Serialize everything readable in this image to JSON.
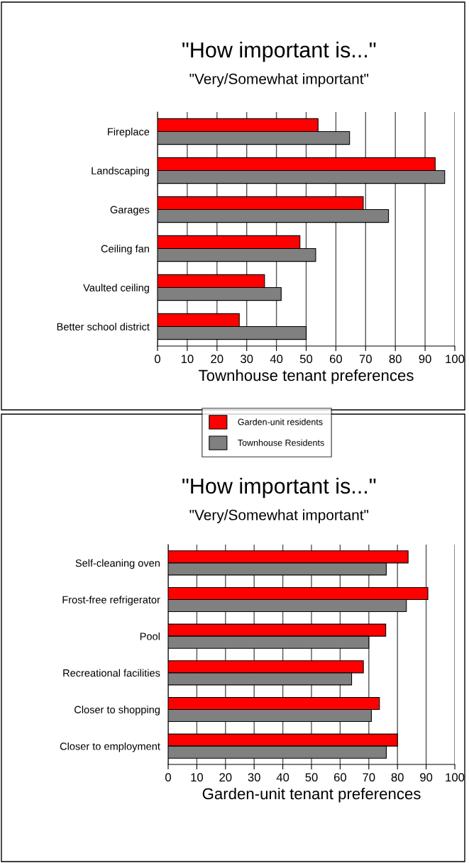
{
  "chart_data": [
    {
      "type": "bar",
      "orientation": "horizontal",
      "title": "\"How important is...\"",
      "subtitle": "\"Very/Somewhat important\"",
      "xlabel": "Townhouse tenant preferences",
      "categories": [
        "Fireplace",
        "Landscaping",
        "Garages",
        "Ceiling fan",
        "Vaulted ceiling",
        "Better school district"
      ],
      "series": [
        {
          "name": "Garden-unit residents",
          "color": "#ff0000",
          "values": [
            54.0,
            93.4,
            69.2,
            47.9,
            36.0,
            27.5
          ]
        },
        {
          "name": "Townhouse Residents",
          "color": "#808080",
          "values": [
            64.6,
            96.6,
            77.7,
            53.2,
            41.6,
            50.0
          ]
        }
      ],
      "xlim": [
        0,
        100
      ],
      "xticks": [
        0,
        10,
        20,
        30,
        40,
        50,
        60,
        70,
        80,
        90,
        100
      ],
      "grid": "x",
      "legend": "bottom"
    },
    {
      "type": "bar",
      "orientation": "horizontal",
      "title": "\"How important is...\"",
      "subtitle": "\"Very/Somewhat important\"",
      "xlabel": "Garden-unit tenant preferences",
      "categories": [
        "Self-cleaning oven",
        "Frost-free refrigerator",
        "Pool",
        "Recreational facilities",
        "Closer to shopping",
        "Closer to employment"
      ],
      "series": [
        {
          "color": "#ff0000",
          "values": [
            83.7,
            90.6,
            75.9,
            68.1,
            73.7,
            80.0
          ]
        },
        {
          "color": "#808080",
          "values": [
            76.1,
            83.1,
            70.0,
            64.0,
            70.9,
            76.1
          ]
        }
      ],
      "xlim": [
        0,
        100
      ],
      "xticks": [
        0,
        10,
        20,
        30,
        40,
        50,
        60,
        70,
        80,
        90,
        100
      ],
      "grid": "x"
    }
  ]
}
